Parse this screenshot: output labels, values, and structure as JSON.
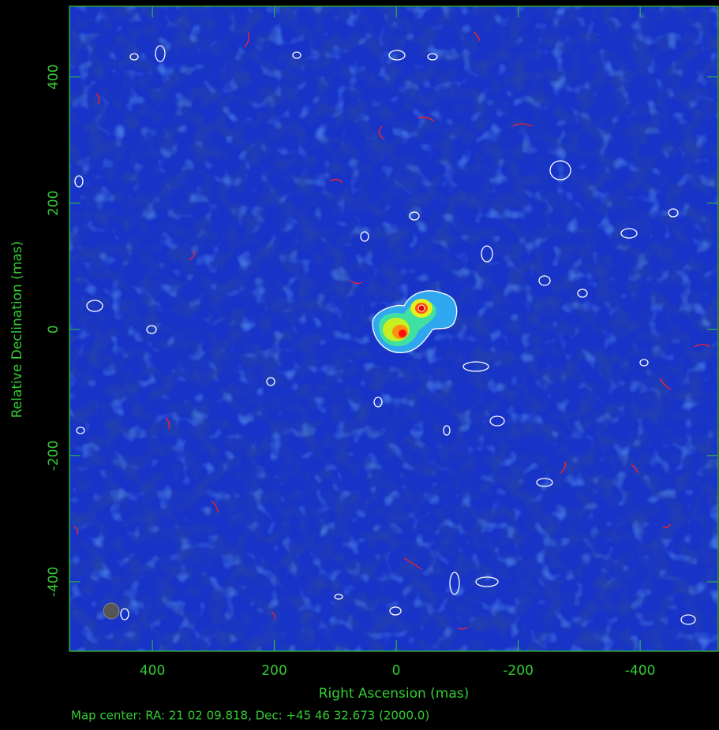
{
  "chart_data": {
    "type": "image",
    "xlabel": "Right Ascension  (mas)",
    "ylabel": "Relative Declination  (mas)",
    "footer": "Map center:  RA: 21 02 09.818,  Dec: +45 46 32.673 (2000.0)",
    "xlim": [
      536,
      -528
    ],
    "xticks": [
      400,
      200,
      0,
      -200,
      -400
    ],
    "ylim": [
      -510,
      512
    ],
    "yticks": [
      400,
      200,
      0,
      -200,
      -400
    ],
    "frame_color": "#33cc33"
  }
}
